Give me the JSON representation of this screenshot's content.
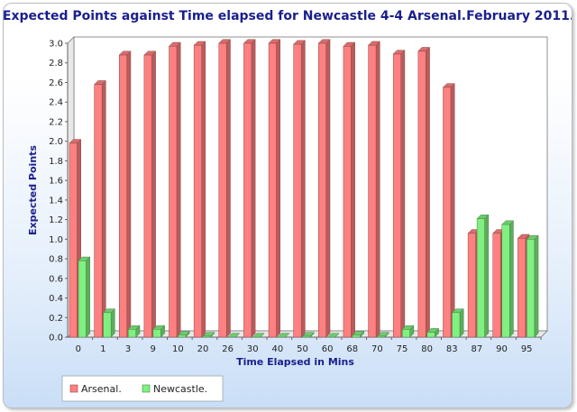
{
  "chart_data": {
    "type": "bar",
    "title": "Expected Points against Time elapsed for Newcastle 4-4 Arsenal.February 2011.",
    "xlabel": "Time Elapsed in Mins",
    "ylabel": "Expected Points",
    "ylim": [
      0,
      3.0
    ],
    "yticks": [
      "0.0",
      "0.2",
      "0.4",
      "0.6",
      "0.8",
      "1.0",
      "1.2",
      "1.4",
      "1.6",
      "1.8",
      "2.0",
      "2.2",
      "2.4",
      "2.6",
      "2.8",
      "3.0"
    ],
    "categories": [
      "0",
      "1",
      "3",
      "9",
      "10",
      "20",
      "26",
      "30",
      "40",
      "50",
      "60",
      "68",
      "70",
      "75",
      "80",
      "83",
      "87",
      "90",
      "95"
    ],
    "series": [
      {
        "name": "Arsenal.",
        "color": "#ff8080",
        "values": [
          1.98,
          2.58,
          2.88,
          2.88,
          2.97,
          2.98,
          3.0,
          3.0,
          3.0,
          2.99,
          3.0,
          2.97,
          2.98,
          2.89,
          2.92,
          2.55,
          1.06,
          1.06,
          1.01
        ]
      },
      {
        "name": "Newcastle.",
        "color": "#80f080",
        "values": [
          0.78,
          0.25,
          0.08,
          0.08,
          0.02,
          0.01,
          0.0,
          0.0,
          0.0,
          0.01,
          0.0,
          0.02,
          0.01,
          0.08,
          0.05,
          0.25,
          1.21,
          1.15,
          1.0
        ]
      }
    ],
    "grid": false,
    "legend_position": "bottom-left"
  }
}
